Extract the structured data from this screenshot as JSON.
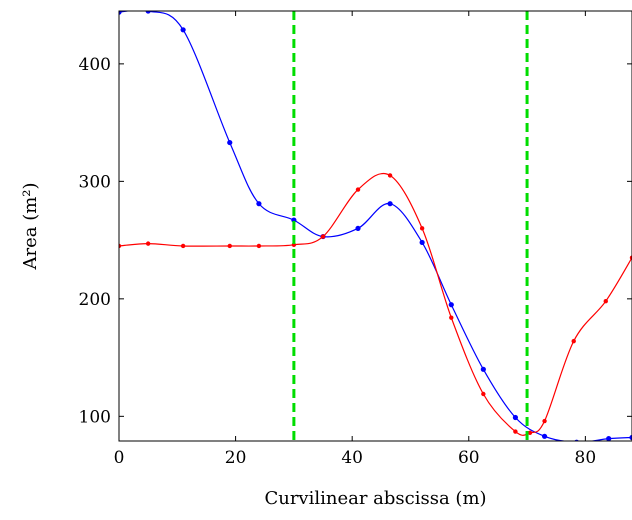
{
  "chart_data": {
    "type": "line",
    "xlabel": "Curvilinear abscissa (m)",
    "ylabel": "Area (m²)",
    "xlim": [
      0,
      88
    ],
    "ylim": [
      79,
      445
    ],
    "xticks": [
      0,
      20,
      40,
      60,
      80
    ],
    "yticks": [
      100,
      200,
      300,
      400
    ],
    "grid": false,
    "legend": "none",
    "vertical_lines": [
      {
        "x": 30,
        "color": "#00dd00",
        "style": "dashed"
      },
      {
        "x": 70,
        "color": "#00dd00",
        "style": "dashed"
      }
    ],
    "series": [
      {
        "color": "#0000ff",
        "points": [
          [
            0,
            444
          ],
          [
            5,
            445
          ],
          [
            11,
            429
          ],
          [
            19,
            333
          ],
          [
            24,
            281
          ],
          [
            30,
            267
          ],
          [
            35,
            253
          ],
          [
            41,
            260
          ],
          [
            46.5,
            281
          ],
          [
            52,
            248
          ],
          [
            57,
            195
          ],
          [
            62.5,
            140
          ],
          [
            68,
            99
          ],
          [
            73,
            83
          ],
          [
            78.5,
            78
          ],
          [
            84,
            81
          ],
          [
            88,
            82
          ]
        ]
      },
      {
        "color": "#ff0000",
        "points": [
          [
            0,
            245
          ],
          [
            5,
            247
          ],
          [
            11,
            245
          ],
          [
            19,
            245
          ],
          [
            24,
            245
          ],
          [
            30,
            246
          ],
          [
            35,
            253
          ],
          [
            41,
            293
          ],
          [
            46.5,
            305
          ],
          [
            52,
            260
          ],
          [
            57,
            184
          ],
          [
            62.5,
            119
          ],
          [
            68,
            87
          ],
          [
            70.5,
            86
          ],
          [
            73,
            96
          ],
          [
            78,
            164
          ],
          [
            83.5,
            198
          ],
          [
            88,
            235
          ]
        ]
      }
    ]
  }
}
